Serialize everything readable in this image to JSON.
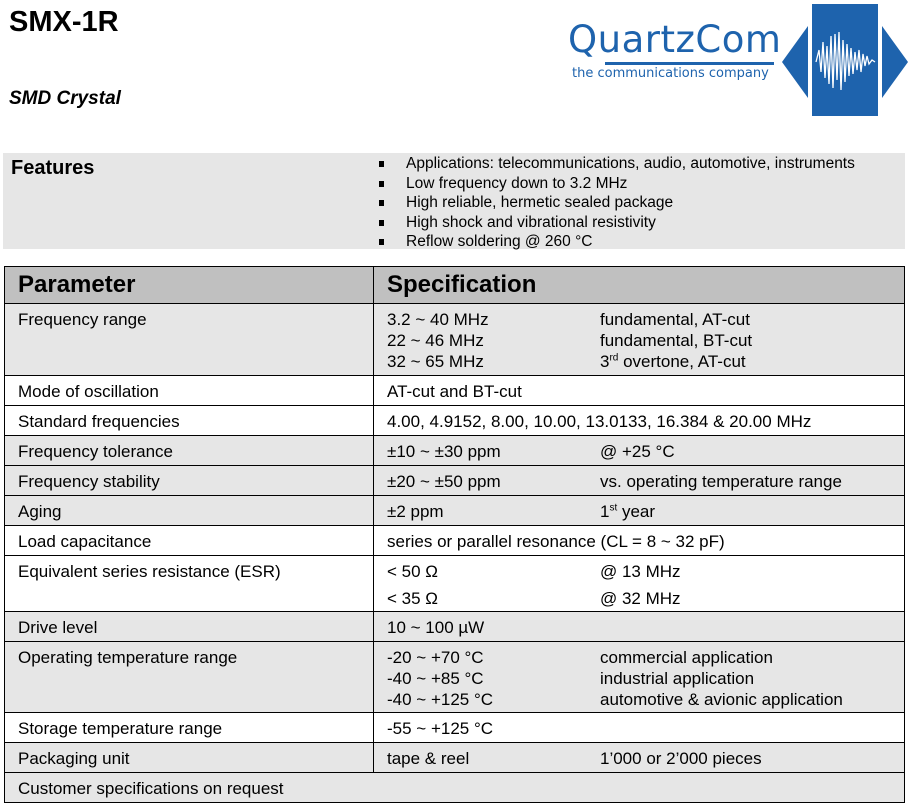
{
  "header": {
    "title": "SMX-1R",
    "subtitle": "SMD Crystal"
  },
  "logo": {
    "name": "QuartzCom",
    "tagline": "the communications company",
    "color": "#1e63ad",
    "icon": "waveform-diamond-icon"
  },
  "features": {
    "label": "Features",
    "items": [
      "Applications: telecommunications, audio, automotive, instruments",
      "Low frequency down to 3.2 MHz",
      "High reliable, hermetic sealed package",
      "High shock and vibrational resistivity",
      "Reflow soldering @ 260 °C"
    ]
  },
  "table": {
    "headers": [
      "Parameter",
      "Specification"
    ],
    "rows": [
      {
        "param": "Frequency range",
        "lines": [
          [
            "3.2 ~ 40 MHz",
            "fundamental, AT-cut"
          ],
          [
            "22 ~ 46 MHz",
            "fundamental, BT-cut"
          ],
          [
            "32 ~ 65 MHz",
            "3",
            "rd",
            " overtone, AT-cut"
          ]
        ]
      },
      {
        "param": "Mode of oscillation",
        "lines": [
          [
            "AT-cut and BT-cut"
          ]
        ]
      },
      {
        "param": "Standard frequencies",
        "lines": [
          [
            "4.00, 4.9152, 8.00, 10.00, 13.0133, 16.384 & 20.00 MHz"
          ]
        ]
      },
      {
        "param": "Frequency tolerance",
        "lines": [
          [
            "±10 ~ ±30 ppm",
            "@ +25 °C"
          ]
        ]
      },
      {
        "param": "Frequency stability",
        "lines": [
          [
            "±20 ~ ±50 ppm",
            "vs. operating temperature range"
          ]
        ]
      },
      {
        "param": "Aging",
        "lines": [
          [
            "±2 ppm",
            "1",
            "st",
            " year"
          ]
        ]
      },
      {
        "param": "Load capacitance",
        "lines": [
          [
            "series or parallel resonance (CL = 8 ~ 32 pF)"
          ]
        ]
      },
      {
        "param": "Equivalent series resistance (ESR)",
        "lines": [
          [
            "< 50 Ω",
            "@ 13 MHz"
          ],
          [
            "< 35 Ω",
            "@ 32 MHz"
          ]
        ]
      },
      {
        "param": "Drive level",
        "lines": [
          [
            "10 ~ 100 µW"
          ]
        ]
      },
      {
        "param": "Operating temperature range",
        "lines": [
          [
            "-20 ~ +70 °C",
            "commercial application"
          ],
          [
            "-40 ~ +85 °C",
            "industrial application"
          ],
          [
            "-40 ~ +125 °C",
            "automotive & avionic application"
          ]
        ]
      },
      {
        "param": "Storage temperature range",
        "lines": [
          [
            "-55 ~ +125 °C"
          ]
        ]
      },
      {
        "param": "Packaging unit",
        "lines": [
          [
            "tape & reel",
            "1’000 or 2’000 pieces"
          ]
        ]
      }
    ],
    "footer": "Customer specifications on request",
    "header_bg": "#c0c0c0",
    "shade_bg": "#e6e6e6"
  }
}
